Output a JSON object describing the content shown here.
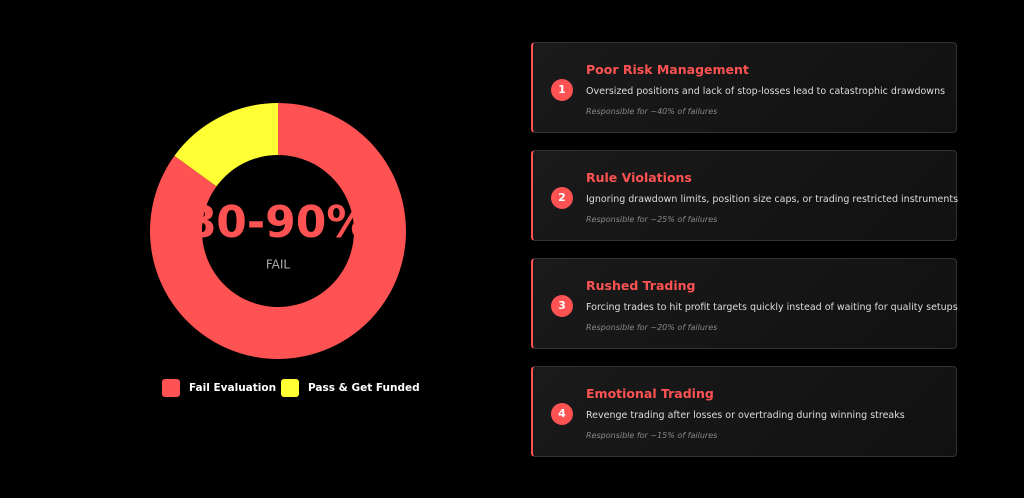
{
  "chart_data": {
    "type": "donut",
    "center_label": "80-90%",
    "center_sublabel": "FAIL",
    "series": [
      {
        "name": "Fail Evaluation",
        "color": "#ff5252",
        "value": 85
      },
      {
        "name": "Pass & Get Funded",
        "color": "#ffff33",
        "value": 15
      }
    ]
  },
  "cards": [
    {
      "number": 1,
      "title": "Poor Risk Management",
      "description": "Oversized positions and lack of stop-losses lead to catastrophic drawdowns",
      "note": "Responsible for ~40% of failures"
    },
    {
      "number": 2,
      "title": "Rule Violations",
      "description": "Ignoring drawdown limits, position size caps, or trading restricted instruments",
      "note": "Responsible for ~25% of failures"
    },
    {
      "number": 3,
      "title": "Rushed Trading",
      "description": "Forcing trades to hit profit targets quickly instead of waiting for quality setups",
      "note": "Responsible for ~20% of failures"
    },
    {
      "number": 4,
      "title": "Emotional Trading",
      "description": "Revenge trading after losses or overtrading during winning streaks",
      "note": "Responsible for ~15% of failures"
    }
  ]
}
